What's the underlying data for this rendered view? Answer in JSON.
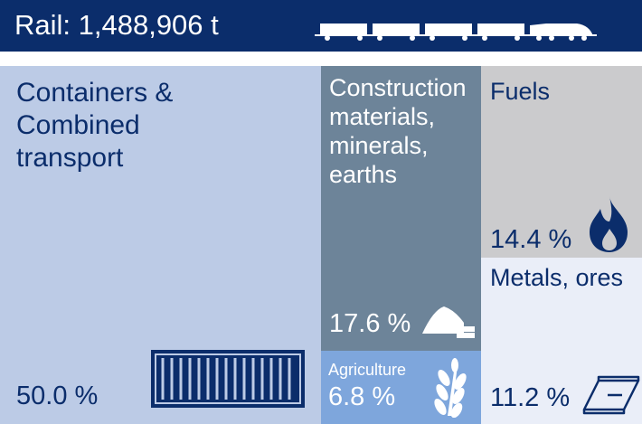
{
  "header": {
    "title": "Rail: 1,488,906 t"
  },
  "chart_data": {
    "type": "treemap",
    "title": "Rail: 1,488,906 t",
    "unit": "%",
    "categories": [
      "Containers & Combined transport",
      "Construction materials, minerals, earths",
      "Agriculture",
      "Fuels",
      "Metals, ores"
    ],
    "values": [
      50.0,
      17.6,
      6.8,
      14.4,
      11.2
    ],
    "value_labels": [
      "50.0 %",
      "17.6 %",
      "6.8 %",
      "14.4 %",
      "11.2 %"
    ],
    "icons": [
      "container-icon",
      "gravel-pile-icon",
      "wheat-icon",
      "flame-icon",
      "steel-beam-icon"
    ],
    "colors": [
      "#bccbe6",
      "#6d8499",
      "#7ea6dc",
      "#cbcbcd",
      "#eaeef8"
    ],
    "text_color": "#0b2d6b"
  }
}
